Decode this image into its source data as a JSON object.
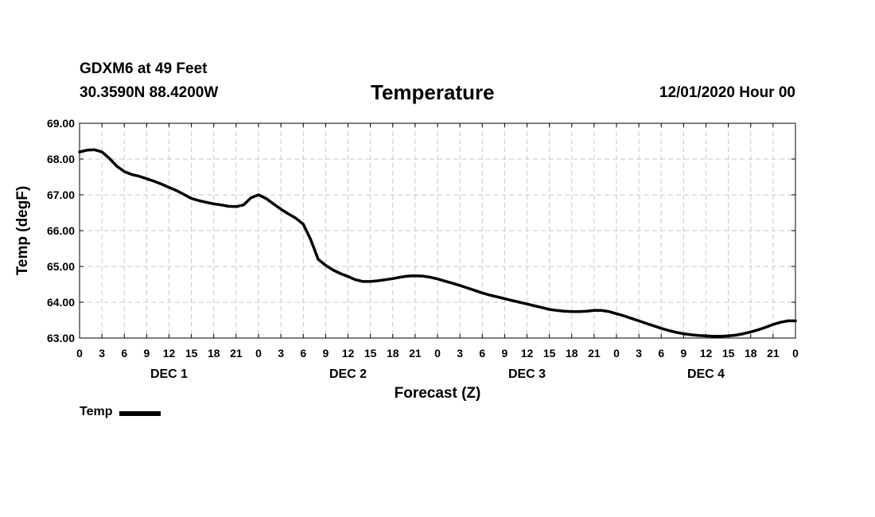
{
  "header": {
    "station": "GDXM6 at 49 Feet",
    "location": "30.3590N 88.4200W",
    "title": "Temperature",
    "run_time": "12/01/2020 Hour 00"
  },
  "legend": {
    "label": "Temp",
    "color": "#000000"
  },
  "chart_data": {
    "type": "line",
    "title": "Temperature",
    "xlabel": "Forecast (Z)",
    "ylabel": "Temp (degF)",
    "ylim": [
      63.0,
      69.0
    ],
    "xlim": [
      0,
      96
    ],
    "grid": true,
    "legend_position": "bottom-left",
    "y_ticks": [
      "63.00",
      "64.00",
      "65.00",
      "66.00",
      "67.00",
      "68.00",
      "69.00"
    ],
    "y_tick_values": [
      63,
      64,
      65,
      66,
      67,
      68,
      69
    ],
    "x_tick_hours": [
      0,
      3,
      6,
      9,
      12,
      15,
      18,
      21,
      24,
      27,
      30,
      33,
      36,
      39,
      42,
      45,
      48,
      51,
      54,
      57,
      60,
      63,
      66,
      69,
      72,
      75,
      78,
      81,
      84,
      87,
      90,
      93,
      96
    ],
    "x_tick_labels": [
      "0",
      "3",
      "6",
      "9",
      "12",
      "15",
      "18",
      "21",
      "0",
      "3",
      "6",
      "9",
      "12",
      "15",
      "18",
      "21",
      "0",
      "3",
      "6",
      "9",
      "12",
      "15",
      "18",
      "21",
      "0",
      "3",
      "6",
      "9",
      "12",
      "15",
      "18",
      "21",
      "0"
    ],
    "day_labels": [
      {
        "label": "DEC 1",
        "hour": 12
      },
      {
        "label": "DEC 2",
        "hour": 36
      },
      {
        "label": "DEC 3",
        "hour": 60
      },
      {
        "label": "DEC 4",
        "hour": 84
      }
    ],
    "series": [
      {
        "name": "Temp",
        "color": "#000000",
        "x": [
          0,
          1,
          2,
          3,
          4,
          5,
          6,
          7,
          8,
          9,
          10,
          11,
          12,
          13,
          14,
          15,
          16,
          17,
          18,
          19,
          20,
          21,
          22,
          23,
          24,
          25,
          26,
          27,
          28,
          29,
          30,
          31,
          32,
          33,
          34,
          35,
          36,
          37,
          38,
          39,
          40,
          41,
          42,
          43,
          44,
          45,
          46,
          47,
          48,
          49,
          50,
          51,
          52,
          53,
          54,
          55,
          56,
          57,
          58,
          59,
          60,
          61,
          62,
          63,
          64,
          65,
          66,
          67,
          68,
          69,
          70,
          71,
          72,
          73,
          74,
          75,
          76,
          77,
          78,
          79,
          80,
          81,
          82,
          83,
          84,
          85,
          86,
          87,
          88,
          89,
          90,
          91,
          92,
          93,
          94,
          95,
          96
        ],
        "values": [
          68.2,
          68.25,
          68.26,
          68.2,
          68.02,
          67.8,
          67.65,
          67.57,
          67.52,
          67.45,
          67.38,
          67.3,
          67.21,
          67.12,
          67.01,
          66.9,
          66.84,
          66.79,
          66.75,
          66.72,
          66.68,
          66.67,
          66.72,
          66.92,
          67.0,
          66.9,
          66.75,
          66.6,
          66.47,
          66.35,
          66.18,
          65.75,
          65.2,
          65.03,
          64.9,
          64.8,
          64.72,
          64.63,
          64.58,
          64.58,
          64.6,
          64.63,
          64.66,
          64.7,
          64.73,
          64.74,
          64.73,
          64.7,
          64.65,
          64.59,
          64.53,
          64.47,
          64.4,
          64.33,
          64.26,
          64.2,
          64.15,
          64.1,
          64.05,
          64.0,
          63.95,
          63.9,
          63.85,
          63.8,
          63.77,
          63.75,
          63.74,
          63.74,
          63.75,
          63.77,
          63.77,
          63.74,
          63.68,
          63.62,
          63.55,
          63.48,
          63.41,
          63.34,
          63.27,
          63.21,
          63.16,
          63.12,
          63.09,
          63.07,
          63.06,
          63.05,
          63.05,
          63.06,
          63.08,
          63.12,
          63.17,
          63.23,
          63.3,
          63.38,
          63.44,
          63.48,
          63.48
        ]
      }
    ]
  }
}
